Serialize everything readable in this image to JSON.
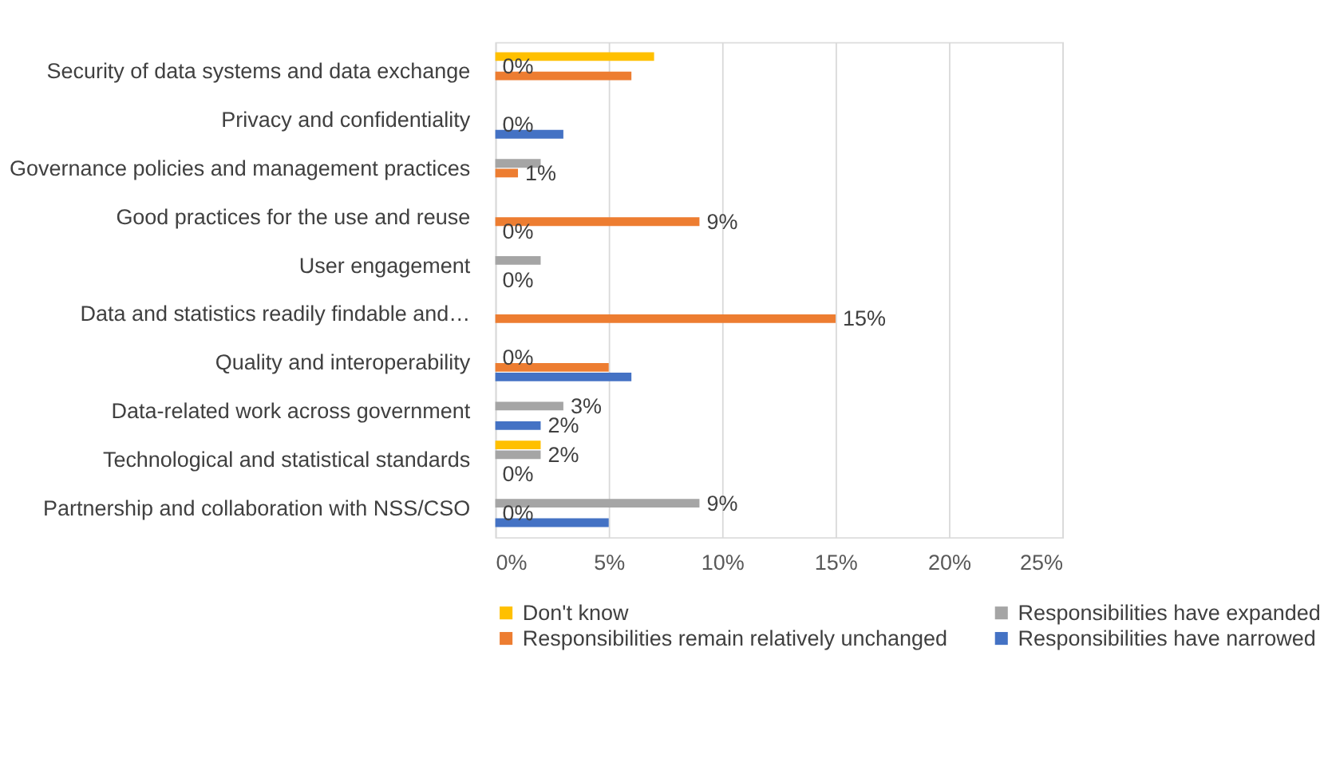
{
  "chart_data": {
    "type": "bar",
    "orientation": "horizontal",
    "categories": [
      "Security of data systems and data exchange",
      "Privacy and confidentiality",
      "Governance policies and management practices",
      "Good practices for the use and reuse",
      "User engagement",
      "Data and statistics readily findable and…",
      "Quality and interoperability",
      "Data-related work across government",
      "Technological and statistical standards",
      "Partnership and collaboration with NSS/CSO"
    ],
    "series": [
      {
        "name": "Don't know",
        "color": "#ffc000",
        "values": [
          7,
          null,
          null,
          null,
          null,
          null,
          null,
          null,
          2,
          null
        ],
        "value_labels": [
          null,
          null,
          null,
          null,
          null,
          null,
          null,
          null,
          null,
          null
        ]
      },
      {
        "name": "Responsibilities have expanded",
        "color": "#a5a5a5",
        "values": [
          0,
          null,
          2,
          null,
          2,
          null,
          0,
          3,
          2,
          9
        ],
        "value_labels": [
          "0%",
          null,
          null,
          null,
          null,
          null,
          "0%",
          "3%",
          "2%",
          "9%"
        ]
      },
      {
        "name": "Responsibilities remain relatively unchanged",
        "color": "#ed7d31",
        "values": [
          6,
          0,
          1,
          9,
          null,
          15,
          5,
          null,
          null,
          0
        ],
        "value_labels": [
          null,
          "0%",
          "1%",
          "9%",
          null,
          "15%",
          null,
          null,
          null,
          "0%"
        ]
      },
      {
        "name": "Responsibilities have narrowed",
        "color": "#4472c4",
        "values": [
          null,
          3,
          null,
          0,
          0,
          null,
          6,
          2,
          0,
          5
        ],
        "value_labels": [
          null,
          null,
          null,
          "0%",
          "0%",
          null,
          null,
          "2%",
          "0%",
          null
        ]
      }
    ],
    "xlim": [
      0,
      25
    ],
    "xticks": [
      {
        "value": 0,
        "label": "0%"
      },
      {
        "value": 5,
        "label": "5%"
      },
      {
        "value": 10,
        "label": "10%"
      },
      {
        "value": 15,
        "label": "15%"
      },
      {
        "value": 20,
        "label": "20%"
      },
      {
        "value": 25,
        "label": "25%"
      }
    ],
    "grid": "x",
    "legend": "bottom"
  }
}
